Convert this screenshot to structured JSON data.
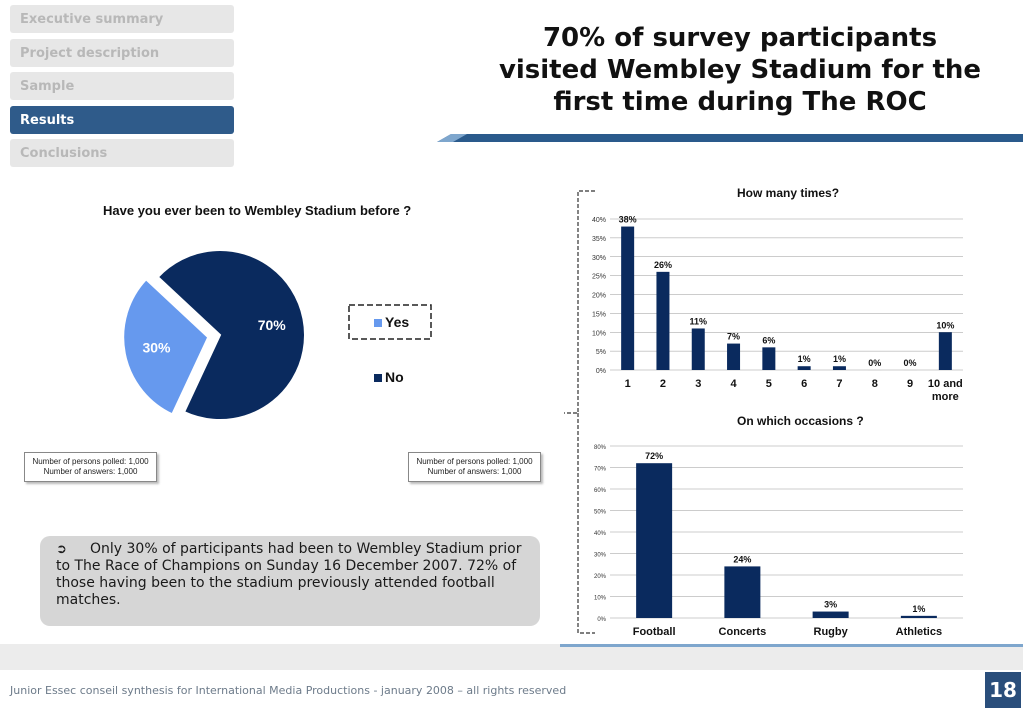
{
  "nav": {
    "items": [
      {
        "label": "Executive summary",
        "active": false
      },
      {
        "label": "Project description",
        "active": false
      },
      {
        "label": "Sample",
        "active": false
      },
      {
        "label": "Results",
        "active": true
      },
      {
        "label": "Conclusions",
        "active": false
      }
    ]
  },
  "title": {
    "line1": "70% of survey participants",
    "line2": "visited Wembley Stadium for the",
    "line3": "first time during The ROC"
  },
  "notes": {
    "left": {
      "line1": "Number of persons polled: 1,000",
      "line2": "Number of answers: 1,000"
    },
    "right": {
      "line1": "Number of persons polled: 1,000",
      "line2": "Number of answers: 1,000"
    }
  },
  "summary": {
    "bullet": "➲",
    "text": "Only 30% of participants had been to Wembley Stadium prior to The Race of Champions on Sunday 16 December 2007. 72% of those having been to the stadium previously attended football matches."
  },
  "footer": {
    "text": "Junior Essec conseil synthesis for International Media Productions - january 2008 – all rights reserved",
    "page": "18"
  },
  "colors": {
    "navy": "#0a2a5e",
    "light_blue": "#6699ee",
    "active_nav": "#2f5b8a"
  },
  "chart_data": [
    {
      "type": "pie",
      "title": "Have you ever been to Wembley Stadium before ?",
      "labels": [
        "Yes",
        "No"
      ],
      "values": [
        30,
        70
      ],
      "data_labels": [
        "30%",
        "70%"
      ],
      "colors": [
        "#6699ee",
        "#0a2a5e"
      ],
      "legend": "right"
    },
    {
      "type": "bar",
      "title": "How many times?",
      "categories": [
        "1",
        "2",
        "3",
        "4",
        "5",
        "6",
        "7",
        "8",
        "9",
        "10 and more"
      ],
      "values": [
        38,
        26,
        11,
        7,
        6,
        1,
        1,
        0,
        0,
        10
      ],
      "data_labels": [
        "38%",
        "26%",
        "11%",
        "7%",
        "6%",
        "1%",
        "1%",
        "0%",
        "0%",
        "10%"
      ],
      "ylim": [
        0,
        40
      ],
      "yticks": [
        "0%",
        "5%",
        "10%",
        "15%",
        "20%",
        "25%",
        "30%",
        "35%",
        "40%"
      ],
      "grid": true
    },
    {
      "type": "bar",
      "title": "On which occasions ?",
      "categories": [
        "Football",
        "Concerts",
        "Rugby",
        "Athletics"
      ],
      "values": [
        72,
        24,
        3,
        1
      ],
      "data_labels": [
        "72%",
        "24%",
        "3%",
        "1%"
      ],
      "ylim": [
        0,
        80
      ],
      "yticks": [
        "0%",
        "10%",
        "20%",
        "30%",
        "40%",
        "50%",
        "60%",
        "70%",
        "80%"
      ],
      "grid": true
    }
  ]
}
